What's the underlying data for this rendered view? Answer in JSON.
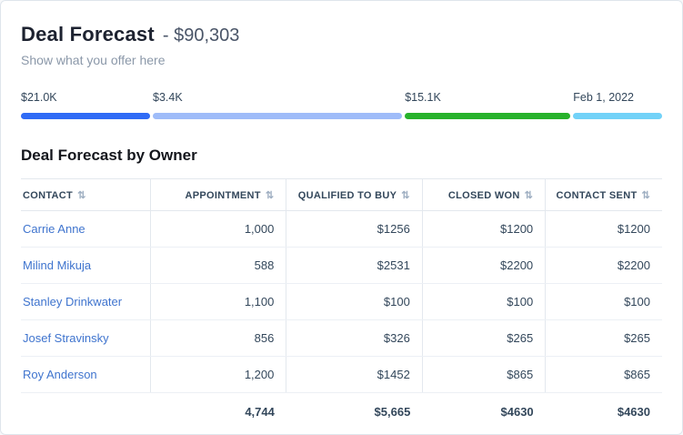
{
  "header": {
    "title": "Deal Forecast",
    "amount": "- $90,303",
    "subtitle": "Show what you offer here"
  },
  "progress": {
    "segments": [
      {
        "label": "$21.0K",
        "color": "#2f6bf6",
        "width": 20.2
      },
      {
        "label": "$3.4K",
        "color": "#9fbcf9",
        "width": 39.0
      },
      {
        "label": "$15.1K",
        "color": "#27b22b",
        "width": 25.9
      },
      {
        "label": "Feb 1, 2022",
        "color": "#72d2f8",
        "width": 13.9
      }
    ]
  },
  "table": {
    "title": "Deal Forecast by Owner",
    "columns": [
      "CONTACT",
      "APPOINTMENT",
      "QUALIFIED TO BUY",
      "CLOSED WON",
      "CONTACT SENT"
    ],
    "rows": [
      {
        "contact": "Carrie Anne",
        "appointment": "1,000",
        "qualified": "$1256",
        "closed": "$1200",
        "sent": "$1200"
      },
      {
        "contact": "Milind Mikuja",
        "appointment": "588",
        "qualified": "$2531",
        "closed": "$2200",
        "sent": "$2200"
      },
      {
        "contact": "Stanley Drinkwater",
        "appointment": "1,100",
        "qualified": "$100",
        "closed": "$100",
        "sent": "$100"
      },
      {
        "contact": "Josef Stravinsky",
        "appointment": "856",
        "qualified": "$326",
        "closed": "$265",
        "sent": "$265"
      },
      {
        "contact": "Roy Anderson",
        "appointment": "1,200",
        "qualified": "$1452",
        "closed": "$865",
        "sent": "$865"
      }
    ],
    "totals": {
      "contact": "",
      "appointment": "4,744",
      "qualified": "$5,665",
      "closed": "$4630",
      "sent": "$4630"
    }
  },
  "icons": {
    "sort": "⇅"
  },
  "colors": {
    "link": "#3f74ce",
    "heading": "#1d2230",
    "text": "#33475b",
    "muted": "#8b98a9",
    "border": "#e3e8ee"
  }
}
